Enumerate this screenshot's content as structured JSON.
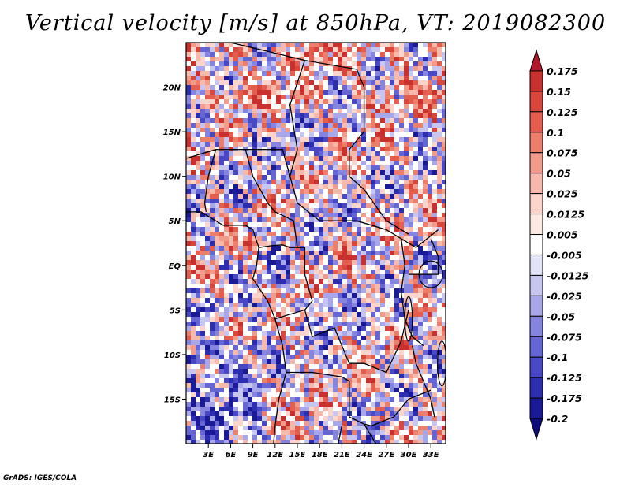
{
  "title": "Vertical velocity [m/s] at 850hPa, VT: 2019082300",
  "footer": "GrADS: IGES/COLA",
  "map": {
    "lon_range": [
      0,
      35
    ],
    "lat_range": [
      -20,
      25
    ],
    "lat_ticks": [
      "20N",
      "15N",
      "10N",
      "5N",
      "EQ",
      "5S",
      "10S",
      "15S"
    ],
    "lat_values": [
      20,
      15,
      10,
      5,
      0,
      -5,
      -10,
      -15
    ],
    "lon_ticks": [
      "3E",
      "6E",
      "9E",
      "12E",
      "15E",
      "18E",
      "21E",
      "24E",
      "27E",
      "30E",
      "33E"
    ],
    "lon_values": [
      3,
      6,
      9,
      12,
      15,
      18,
      21,
      24,
      27,
      30,
      33
    ]
  },
  "colorbar": {
    "labels": [
      "0.175",
      "0.15",
      "0.125",
      "0.1",
      "0.075",
      "0.05",
      "0.025",
      "0.0125",
      "0.005",
      "-0.005",
      "-0.0125",
      "-0.025",
      "-0.05",
      "-0.075",
      "-0.1",
      "-0.125",
      "-0.175",
      "-0.2"
    ],
    "colors": [
      "#b2182b",
      "#c9312f",
      "#d9473c",
      "#e35e4f",
      "#ec7e6c",
      "#f29b8a",
      "#f7b9ac",
      "#fbd5cc",
      "#fde9e4",
      "#ffffff",
      "#e3e3f8",
      "#c6c6f1",
      "#a7a7ea",
      "#8585df",
      "#6565d3",
      "#4848c4",
      "#2d2db0",
      "#1a1a96",
      "#0c0c7a"
    ]
  }
}
